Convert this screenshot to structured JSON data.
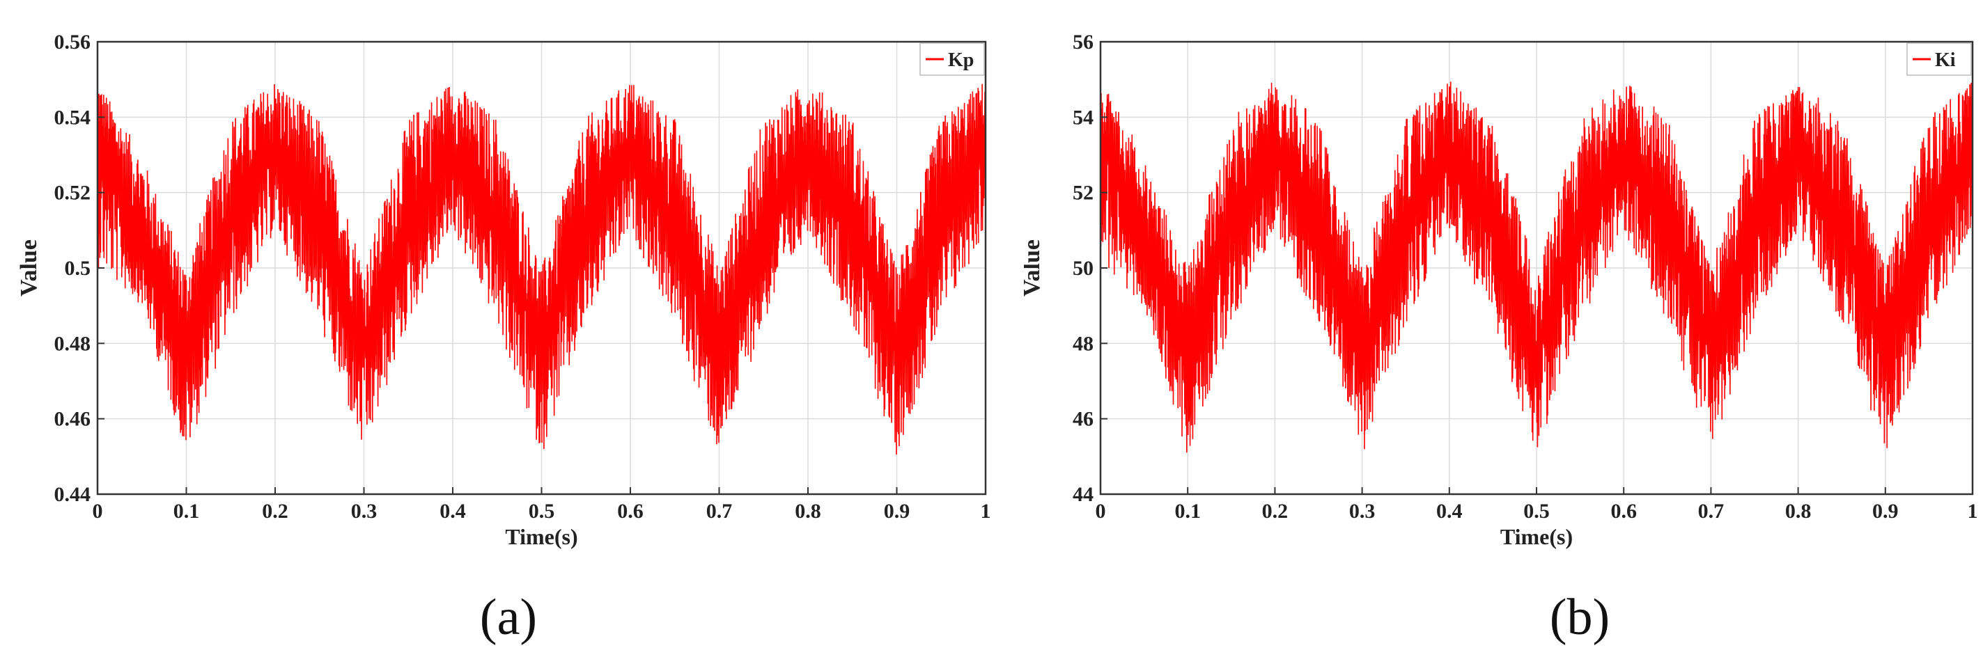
{
  "chart_data": [
    {
      "type": "line",
      "caption": "(a)",
      "xlabel": "Time(s)",
      "ylabel": "Value",
      "xlim": [
        0,
        1
      ],
      "ylim": [
        0.44,
        0.56
      ],
      "xticks": [
        0,
        0.1,
        0.2,
        0.3,
        0.4,
        0.5,
        0.6,
        0.7,
        0.8,
        0.9,
        1
      ],
      "xtick_labels": [
        "0",
        "0.1",
        "0.2",
        "0.3",
        "0.4",
        "0.5",
        "0.6",
        "0.7",
        "0.8",
        "0.9",
        "1"
      ],
      "yticks": [
        0.44,
        0.46,
        0.48,
        0.5,
        0.52,
        0.54,
        0.56
      ],
      "ytick_labels": [
        "0.44",
        "0.46",
        "0.48",
        "0.5",
        "0.52",
        "0.54",
        "0.56"
      ],
      "grid": true,
      "legend_position": "top-right",
      "color": "#ff0000",
      "series": [
        {
          "name": "Kp",
          "x": [
            0,
            0.05,
            0.1,
            0.15,
            0.2,
            0.25,
            0.3,
            0.35,
            0.4,
            0.45,
            0.5,
            0.55,
            0.6,
            0.65,
            0.7,
            0.75,
            0.8,
            0.85,
            0.9,
            0.95,
            1
          ],
          "upper": [
            0.55,
            0.53,
            0.5,
            0.54,
            0.55,
            0.54,
            0.5,
            0.54,
            0.55,
            0.54,
            0.5,
            0.54,
            0.55,
            0.54,
            0.5,
            0.54,
            0.55,
            0.54,
            0.5,
            0.54,
            0.55
          ],
          "mean": [
            0.535,
            0.505,
            0.478,
            0.512,
            0.53,
            0.51,
            0.478,
            0.51,
            0.53,
            0.51,
            0.478,
            0.51,
            0.53,
            0.51,
            0.478,
            0.51,
            0.53,
            0.51,
            0.478,
            0.51,
            0.535
          ],
          "lower": [
            0.5,
            0.49,
            0.45,
            0.485,
            0.51,
            0.485,
            0.45,
            0.485,
            0.51,
            0.485,
            0.45,
            0.485,
            0.51,
            0.485,
            0.45,
            0.485,
            0.51,
            0.485,
            0.45,
            0.485,
            0.51
          ]
        }
      ]
    },
    {
      "type": "line",
      "caption": "(b)",
      "xlabel": "Time(s)",
      "ylabel": "Value",
      "xlim": [
        0,
        1
      ],
      "ylim": [
        44,
        56
      ],
      "xticks": [
        0,
        0.1,
        0.2,
        0.3,
        0.4,
        0.5,
        0.6,
        0.7,
        0.8,
        0.9,
        1
      ],
      "xtick_labels": [
        "0",
        "0.1",
        "0.2",
        "0.3",
        "0.4",
        "0.5",
        "0.6",
        "0.7",
        "0.8",
        "0.9",
        "1"
      ],
      "yticks": [
        44,
        46,
        48,
        50,
        52,
        54,
        56
      ],
      "ytick_labels": [
        "44",
        "46",
        "48",
        "50",
        "52",
        "54",
        "56"
      ],
      "grid": true,
      "legend_position": "top-right",
      "color": "#ff0000",
      "series": [
        {
          "name": "Ki",
          "x": [
            0,
            0.05,
            0.1,
            0.15,
            0.2,
            0.25,
            0.3,
            0.35,
            0.4,
            0.45,
            0.5,
            0.55,
            0.6,
            0.65,
            0.7,
            0.75,
            0.8,
            0.85,
            0.9,
            0.95,
            1
          ],
          "upper": [
            55,
            53,
            50,
            54,
            55,
            54,
            50,
            54,
            55,
            54,
            50,
            54,
            55,
            54,
            50,
            54,
            55,
            54,
            50,
            54,
            55
          ],
          "mean": [
            53.5,
            50.5,
            47.8,
            51.2,
            53,
            51,
            47.8,
            51,
            53,
            51,
            47.8,
            51,
            53,
            51,
            47.8,
            51,
            53,
            51,
            47.8,
            51,
            53.5
          ],
          "lower": [
            50,
            49,
            45,
            48.5,
            51,
            48.5,
            45,
            48.5,
            51,
            48.5,
            45,
            48.5,
            51,
            48.5,
            45,
            48.5,
            51,
            48.5,
            45,
            48.5,
            51
          ]
        }
      ]
    }
  ]
}
